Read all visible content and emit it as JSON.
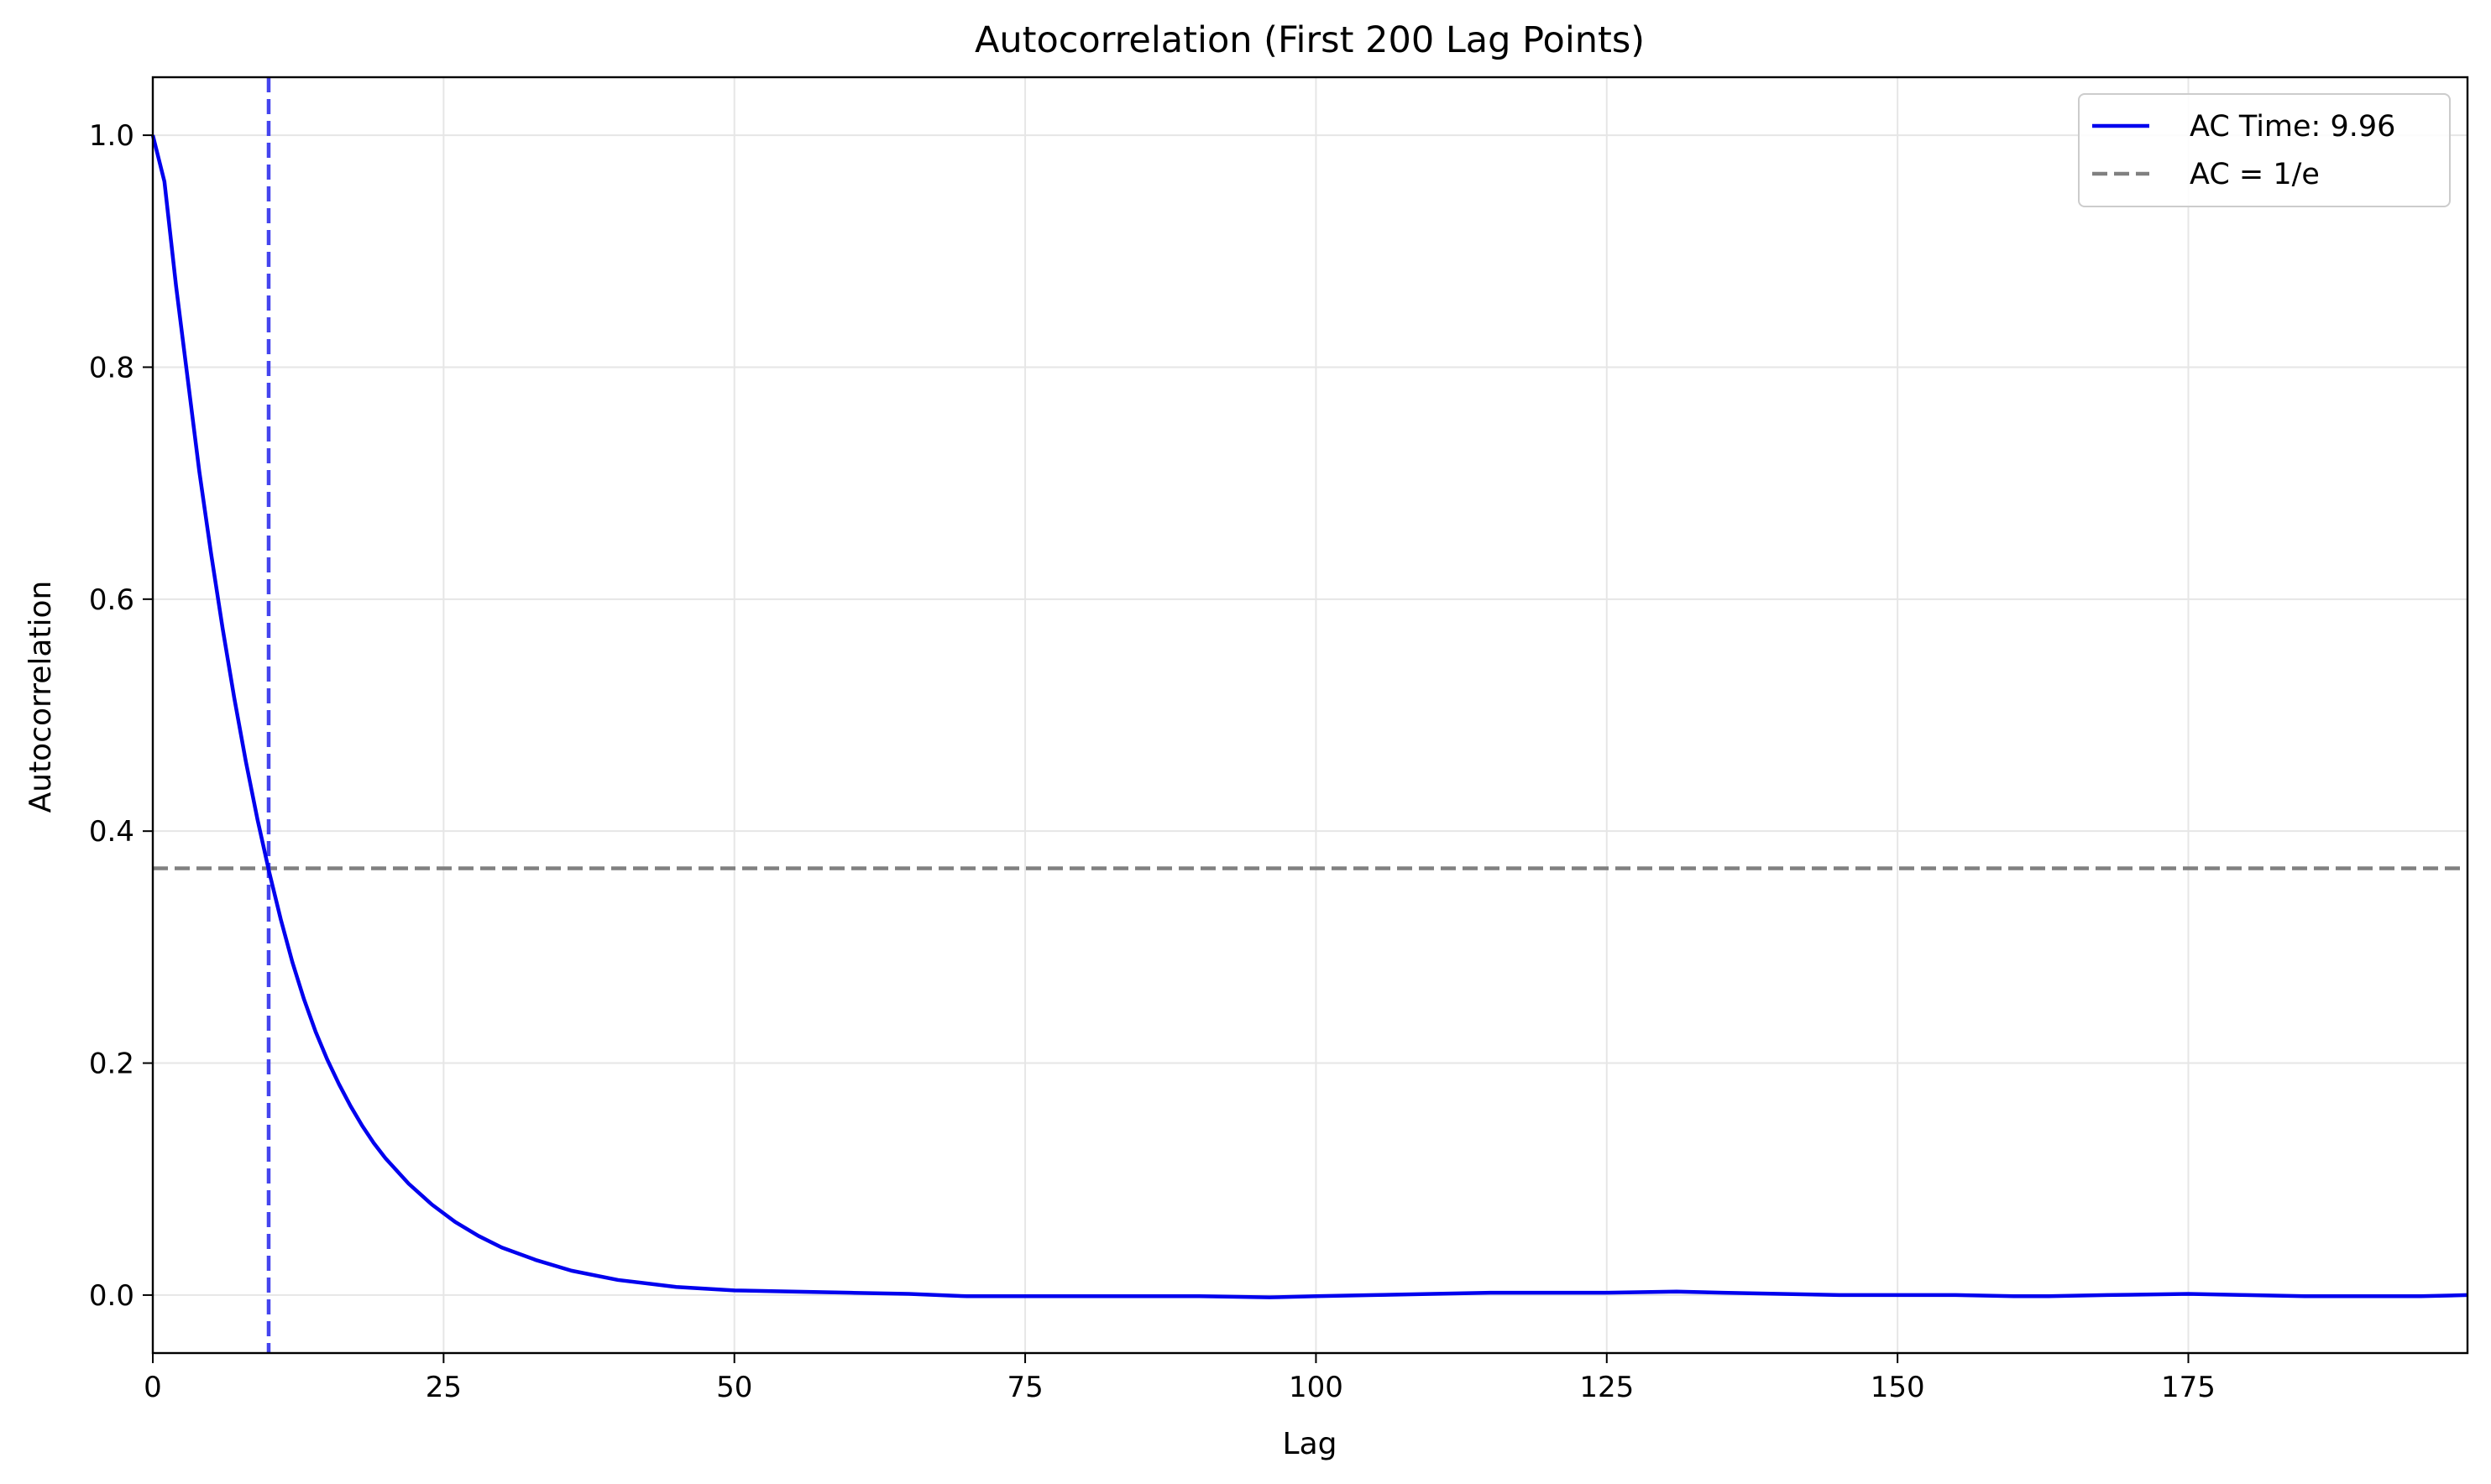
{
  "chart_data": {
    "type": "line",
    "title": "Autocorrelation (First 200 Lag Points)",
    "xlabel": "Lag",
    "ylabel": "Autocorrelation",
    "xlim": [
      0,
      199
    ],
    "ylim": [
      -0.05,
      1.05
    ],
    "x_ticks": [
      0,
      25,
      50,
      75,
      100,
      125,
      150,
      175
    ],
    "x_tick_labels": [
      "0",
      "25",
      "50",
      "75",
      "100",
      "125",
      "150",
      "175"
    ],
    "y_ticks": [
      0.0,
      0.2,
      0.4,
      0.6,
      0.8,
      1.0
    ],
    "y_tick_labels": [
      "0.0",
      "0.2",
      "0.4",
      "0.6",
      "0.8",
      "1.0"
    ],
    "grid": true,
    "legend_position": "top-right",
    "series": [
      {
        "name": "AC Time: 9.96",
        "color": "#0000ee",
        "style": "solid",
        "x": [
          0,
          1,
          2,
          3,
          4,
          5,
          6,
          7,
          8,
          9,
          10,
          11,
          12,
          13,
          14,
          15,
          16,
          17,
          18,
          19,
          20,
          22,
          24,
          26,
          28,
          30,
          33,
          36,
          40,
          45,
          50,
          55,
          60,
          65,
          70,
          75,
          80,
          85,
          90,
          96,
          100,
          105,
          110,
          115,
          120,
          125,
          131,
          135,
          140,
          145,
          150,
          155,
          160,
          163,
          168,
          175,
          180,
          185,
          190,
          195,
          199
        ],
        "y": [
          1.0,
          0.96,
          0.87,
          0.79,
          0.71,
          0.64,
          0.575,
          0.515,
          0.46,
          0.41,
          0.365,
          0.324,
          0.287,
          0.255,
          0.227,
          0.203,
          0.182,
          0.163,
          0.146,
          0.131,
          0.118,
          0.096,
          0.078,
          0.063,
          0.051,
          0.041,
          0.03,
          0.021,
          0.013,
          0.007,
          0.004,
          0.003,
          0.002,
          0.001,
          -0.001,
          -0.001,
          -0.001,
          -0.001,
          -0.001,
          -0.002,
          -0.001,
          0.0,
          0.001,
          0.002,
          0.002,
          0.002,
          0.003,
          0.002,
          0.001,
          0.0,
          0.0,
          0.0,
          -0.001,
          -0.001,
          0.0,
          0.001,
          0.0,
          -0.001,
          -0.001,
          -0.001,
          0.0
        ]
      },
      {
        "name": "AC = 1/e",
        "color": "#808080",
        "style": "dashed",
        "orientation": "horizontal",
        "y": 0.3679
      }
    ],
    "annotations": [
      {
        "type": "vertical-line",
        "x": 9.96,
        "color": "#3a3aee",
        "style": "dashed"
      }
    ]
  }
}
